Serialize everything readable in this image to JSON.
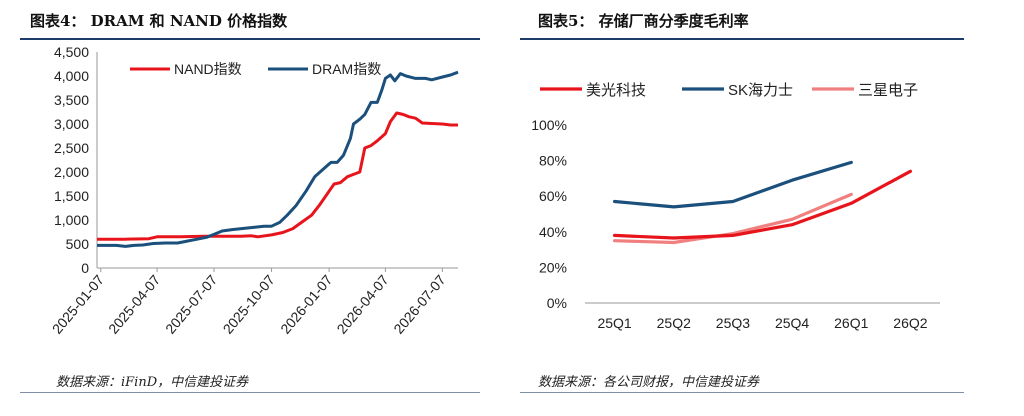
{
  "left": {
    "title": "图表4：  DRAM 和 NAND 价格指数",
    "source": "数据来源：iFinD，中信建投证券",
    "chart_data": {
      "type": "line",
      "legend_placement": "top-left",
      "ylim": [
        0,
        4500
      ],
      "yticks": [
        0,
        500,
        1000,
        1500,
        2000,
        2500,
        3000,
        3500,
        4000,
        4500
      ],
      "ytick_labels": [
        "0",
        "500",
        "1,000",
        "1,500",
        "2,000",
        "2,500",
        "3,000",
        "3,500",
        "4,000",
        "4,500"
      ],
      "xlim": [
        "2025-01-01",
        "2026-08-01"
      ],
      "xticks": [
        "2025-01-07",
        "2025-04-07",
        "2025-07-07",
        "2025-10-07",
        "2026-01-07",
        "2026-04-07",
        "2026-07-07"
      ],
      "series": [
        {
          "name": "NAND指数",
          "color": "#e8141c",
          "points": [
            [
              "2025-01-01",
              600
            ],
            [
              "2025-02-15",
              600
            ],
            [
              "2025-03-25",
              610
            ],
            [
              "2025-04-07",
              650
            ],
            [
              "2025-05-15",
              650
            ],
            [
              "2025-06-20",
              660
            ],
            [
              "2025-07-20",
              660
            ],
            [
              "2025-08-20",
              660
            ],
            [
              "2025-09-05",
              670
            ],
            [
              "2025-09-15",
              650
            ],
            [
              "2025-10-07",
              690
            ],
            [
              "2025-10-25",
              740
            ],
            [
              "2025-11-10",
              820
            ],
            [
              "2025-11-25",
              960
            ],
            [
              "2025-12-10",
              1100
            ],
            [
              "2025-12-22",
              1300
            ],
            [
              "2026-01-07",
              1600
            ],
            [
              "2026-01-15",
              1750
            ],
            [
              "2026-01-25",
              1780
            ],
            [
              "2026-02-05",
              1900
            ],
            [
              "2026-02-15",
              1950
            ],
            [
              "2026-02-25",
              2000
            ],
            [
              "2026-03-05",
              2500
            ],
            [
              "2026-03-15",
              2550
            ],
            [
              "2026-03-25",
              2650
            ],
            [
              "2026-04-07",
              2800
            ],
            [
              "2026-04-15",
              3050
            ],
            [
              "2026-04-25",
              3230
            ],
            [
              "2026-05-05",
              3200
            ],
            [
              "2026-05-15",
              3150
            ],
            [
              "2026-05-25",
              3120
            ],
            [
              "2026-06-05",
              3020
            ],
            [
              "2026-06-20",
              3010
            ],
            [
              "2026-07-07",
              3000
            ],
            [
              "2026-07-20",
              2980
            ],
            [
              "2026-08-01",
              2980
            ]
          ]
        },
        {
          "name": "DRAM指数",
          "color": "#1b4f7c",
          "points": [
            [
              "2025-01-01",
              470
            ],
            [
              "2025-02-01",
              470
            ],
            [
              "2025-02-15",
              450
            ],
            [
              "2025-03-01",
              470
            ],
            [
              "2025-03-15",
              480
            ],
            [
              "2025-04-01",
              510
            ],
            [
              "2025-04-20",
              520
            ],
            [
              "2025-05-10",
              520
            ],
            [
              "2025-05-25",
              560
            ],
            [
              "2025-06-10",
              600
            ],
            [
              "2025-06-25",
              640
            ],
            [
              "2025-07-07",
              700
            ],
            [
              "2025-07-20",
              770
            ],
            [
              "2025-08-05",
              800
            ],
            [
              "2025-08-20",
              820
            ],
            [
              "2025-09-10",
              850
            ],
            [
              "2025-09-25",
              870
            ],
            [
              "2025-10-07",
              870
            ],
            [
              "2025-10-20",
              950
            ],
            [
              "2025-11-01",
              1100
            ],
            [
              "2025-11-15",
              1300
            ],
            [
              "2025-12-01",
              1600
            ],
            [
              "2025-12-15",
              1900
            ],
            [
              "2026-01-01",
              2100
            ],
            [
              "2026-01-10",
              2200
            ],
            [
              "2026-01-20",
              2200
            ],
            [
              "2026-01-30",
              2350
            ],
            [
              "2026-02-10",
              2700
            ],
            [
              "2026-02-15",
              3000
            ],
            [
              "2026-02-25",
              3100
            ],
            [
              "2026-03-05",
              3200
            ],
            [
              "2026-03-15",
              3450
            ],
            [
              "2026-03-25",
              3450
            ],
            [
              "2026-04-01",
              3700
            ],
            [
              "2026-04-07",
              3950
            ],
            [
              "2026-04-15",
              4020
            ],
            [
              "2026-04-22",
              3900
            ],
            [
              "2026-05-01",
              4050
            ],
            [
              "2026-05-10",
              4000
            ],
            [
              "2026-05-25",
              3950
            ],
            [
              "2026-06-10",
              3950
            ],
            [
              "2026-06-20",
              3920
            ],
            [
              "2026-07-07",
              3980
            ],
            [
              "2026-07-20",
              4020
            ],
            [
              "2026-08-01",
              4080
            ]
          ]
        }
      ]
    }
  },
  "right": {
    "title": "图表5：  存储厂商分季度毛利率",
    "source": "数据来源：各公司财报，中信建投证券",
    "chart_data": {
      "type": "line",
      "legend_placement": "top",
      "categories": [
        "25Q1",
        "25Q2",
        "25Q3",
        "25Q4",
        "26Q1",
        "26Q2"
      ],
      "ylim": [
        0,
        100
      ],
      "yticks": [
        0,
        20,
        40,
        60,
        80,
        100
      ],
      "ytick_labels": [
        "0%",
        "20%",
        "40%",
        "60%",
        "80%",
        "100%"
      ],
      "series": [
        {
          "name": "美光科技",
          "color": "#e8141c",
          "values": [
            38,
            36.5,
            38,
            44,
            56,
            74
          ]
        },
        {
          "name": "SK海力士",
          "color": "#1b4f7c",
          "values": [
            57,
            54,
            57,
            69,
            79,
            null
          ]
        },
        {
          "name": "三星电子",
          "color": "#f08080",
          "values": [
            35,
            34,
            39,
            47,
            61,
            null
          ]
        }
      ]
    }
  }
}
